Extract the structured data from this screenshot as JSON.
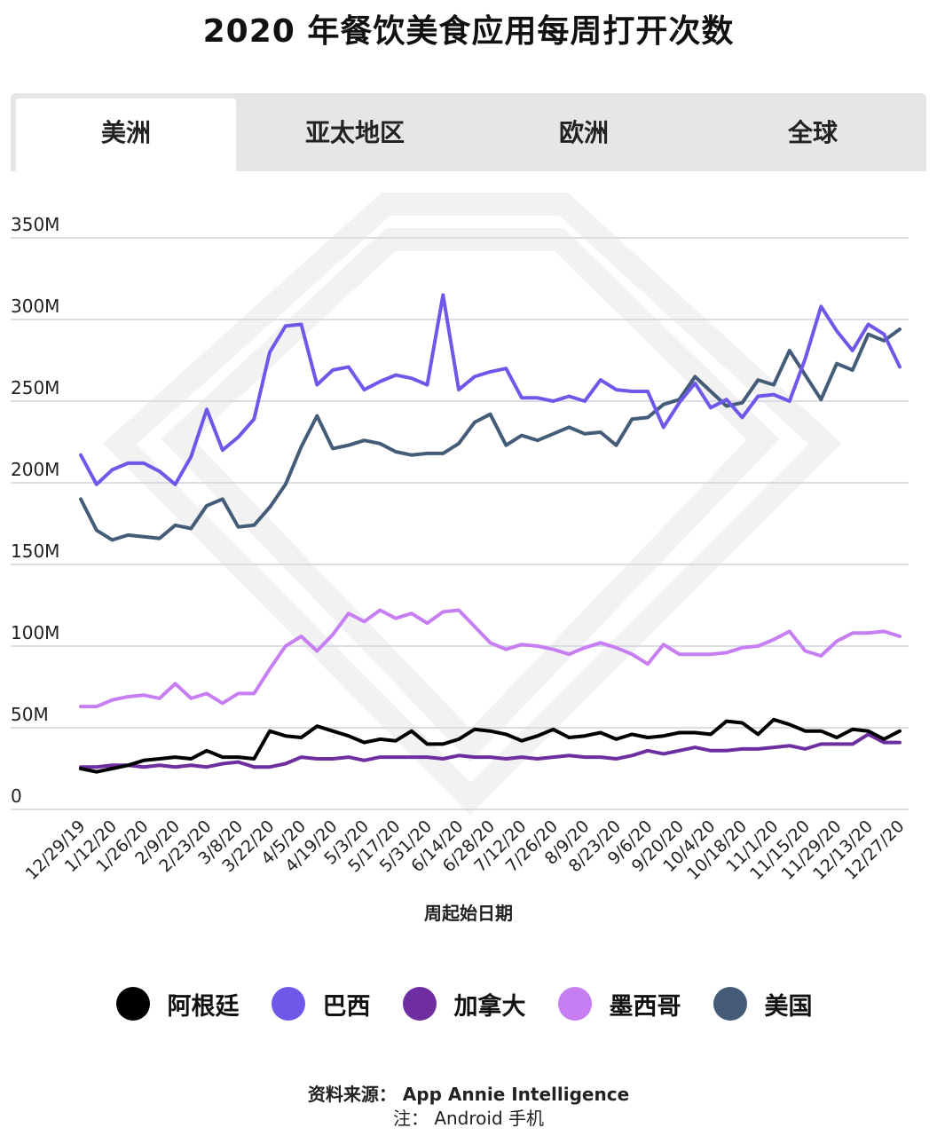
{
  "title": "2020 年餐饮美食应用每周打开次数",
  "tabs": [
    {
      "label": "美洲",
      "active": true
    },
    {
      "label": "亚太地区",
      "active": false
    },
    {
      "label": "欧洲",
      "active": false
    },
    {
      "label": "全球",
      "active": false
    }
  ],
  "footer": {
    "source": "资料来源： App Annie Intelligence",
    "note": "注： Android 手机"
  },
  "chart_data": {
    "type": "line",
    "title": "2020 年餐饮美食应用每周打开次数",
    "xlabel": "周起始日期",
    "ylabel": "",
    "ylim": [
      0,
      350
    ],
    "yunit": "M",
    "yticks": [
      0,
      50,
      100,
      150,
      200,
      250,
      300,
      350
    ],
    "ytick_labels": [
      "0",
      "50M",
      "100M",
      "150M",
      "200M",
      "250M",
      "300M",
      "350M"
    ],
    "grid": true,
    "legend_position": "bottom",
    "x_tick_labels": [
      "12/29/19",
      "1/12/20",
      "1/26/20",
      "2/9/20",
      "2/23/20",
      "3/8/20",
      "3/22/20",
      "4/5/20",
      "4/19/20",
      "5/3/20",
      "5/17/20",
      "5/31/20",
      "6/14/20",
      "6/28/20",
      "7/12/20",
      "7/26/20",
      "8/9/20",
      "8/23/20",
      "9/6/20",
      "9/20/20",
      "10/4/20",
      "10/18/20",
      "11/1/20",
      "11/15/20",
      "11/29/20",
      "12/13/20",
      "12/27/20"
    ],
    "x": [
      "12/29/19",
      "1/5/20",
      "1/12/20",
      "1/19/20",
      "1/26/20",
      "2/2/20",
      "2/9/20",
      "2/16/20",
      "2/23/20",
      "3/1/20",
      "3/8/20",
      "3/15/20",
      "3/22/20",
      "3/29/20",
      "4/5/20",
      "4/12/20",
      "4/19/20",
      "4/26/20",
      "5/3/20",
      "5/10/20",
      "5/17/20",
      "5/24/20",
      "5/31/20",
      "6/7/20",
      "6/14/20",
      "6/21/20",
      "6/28/20",
      "7/5/20",
      "7/12/20",
      "7/19/20",
      "7/26/20",
      "8/2/20",
      "8/9/20",
      "8/16/20",
      "8/23/20",
      "8/30/20",
      "9/6/20",
      "9/13/20",
      "9/20/20",
      "9/27/20",
      "10/4/20",
      "10/11/20",
      "10/18/20",
      "10/25/20",
      "11/1/20",
      "11/8/20",
      "11/15/20",
      "11/22/20",
      "11/29/20",
      "12/6/20",
      "12/13/20",
      "12/20/20",
      "12/27/20"
    ],
    "series": [
      {
        "name": "阿根廷",
        "color": "#000000",
        "values": [
          25,
          23,
          25,
          27,
          30,
          31,
          32,
          31,
          36,
          32,
          32,
          31,
          48,
          45,
          44,
          51,
          48,
          45,
          41,
          43,
          42,
          48,
          40,
          40,
          43,
          49,
          48,
          46,
          42,
          45,
          49,
          44,
          45,
          47,
          43,
          46,
          44,
          45,
          47,
          47,
          46,
          54,
          53,
          46,
          55,
          52,
          48,
          48,
          44,
          49,
          48,
          43,
          48
        ]
      },
      {
        "name": "巴西",
        "color": "#6f58e9",
        "values": [
          217,
          199,
          208,
          212,
          212,
          207,
          199,
          216,
          245,
          220,
          228,
          239,
          280,
          296,
          297,
          260,
          269,
          271,
          257,
          262,
          266,
          264,
          260,
          315,
          257,
          265,
          268,
          270,
          252,
          252,
          250,
          253,
          250,
          263,
          257,
          256,
          256,
          234,
          249,
          261,
          246,
          251,
          240,
          253,
          254,
          250,
          276,
          308,
          293,
          281,
          297,
          291,
          271
        ]
      },
      {
        "name": "加拿大",
        "color": "#6e2ea0",
        "values": [
          26,
          26,
          27,
          27,
          26,
          27,
          26,
          27,
          26,
          28,
          29,
          26,
          26,
          28,
          32,
          31,
          31,
          32,
          30,
          32,
          32,
          32,
          32,
          31,
          33,
          32,
          32,
          31,
          32,
          31,
          32,
          33,
          32,
          32,
          31,
          33,
          36,
          34,
          36,
          38,
          36,
          36,
          37,
          37,
          38,
          39,
          37,
          40,
          40,
          40,
          46,
          41,
          41
        ]
      },
      {
        "name": "墨西哥",
        "color": "#c77ef3",
        "values": [
          63,
          63,
          67,
          69,
          70,
          68,
          77,
          68,
          71,
          65,
          71,
          71,
          86,
          100,
          106,
          97,
          107,
          120,
          115,
          122,
          117,
          120,
          114,
          121,
          122,
          112,
          102,
          98,
          101,
          100,
          98,
          95,
          99,
          102,
          99,
          95,
          89,
          101,
          95,
          95,
          95,
          96,
          99,
          100,
          104,
          109,
          97,
          94,
          103,
          108,
          108,
          109,
          106
        ]
      },
      {
        "name": "美国",
        "color": "#445c78",
        "values": [
          190,
          171,
          165,
          168,
          167,
          166,
          174,
          172,
          186,
          190,
          173,
          174,
          185,
          199,
          222,
          241,
          221,
          223,
          226,
          224,
          219,
          217,
          218,
          218,
          224,
          237,
          242,
          223,
          229,
          226,
          230,
          234,
          230,
          231,
          223,
          239,
          240,
          248,
          251,
          265,
          256,
          247,
          249,
          263,
          260,
          281,
          266,
          251,
          273,
          269,
          291,
          287,
          294
        ]
      }
    ]
  }
}
